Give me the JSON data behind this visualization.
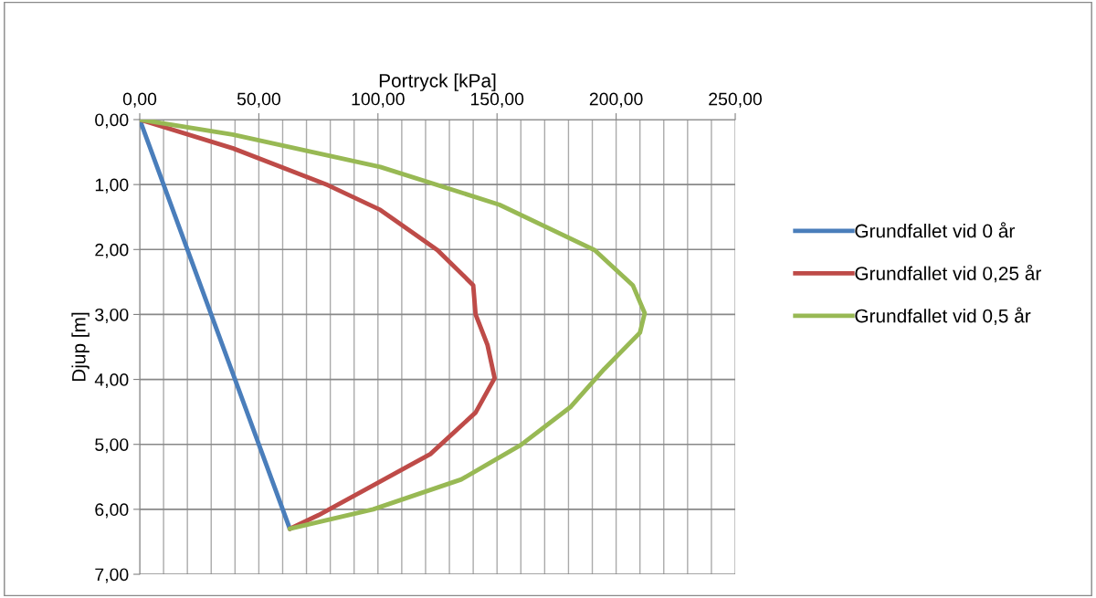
{
  "chart_data": {
    "type": "line",
    "xlabel": "Portryck [kPa]",
    "ylabel": "Djup [m]",
    "xlim": [
      0,
      250
    ],
    "xticks": [
      {
        "value": 0,
        "label": "0,00"
      },
      {
        "value": 50,
        "label": "50,00"
      },
      {
        "value": 100,
        "label": "100,00"
      },
      {
        "value": 150,
        "label": "150,00"
      },
      {
        "value": 200,
        "label": "200,00"
      },
      {
        "value": 250,
        "label": "250,00"
      }
    ],
    "ylim": [
      7,
      0
    ],
    "yticks": [
      {
        "value": 0,
        "label": "0,00"
      },
      {
        "value": 1,
        "label": "1,00"
      },
      {
        "value": 2,
        "label": "2,00"
      },
      {
        "value": 3,
        "label": "3,00"
      },
      {
        "value": 4,
        "label": "4,00"
      },
      {
        "value": 5,
        "label": "5,00"
      },
      {
        "value": 6,
        "label": "6,00"
      },
      {
        "value": 7,
        "label": "7,00"
      }
    ],
    "grid": true,
    "legend": "right",
    "marker": "none",
    "line_style": "solid",
    "series": [
      {
        "name": "Grundfallet vid 0 år",
        "color": "#4a7ebb",
        "x": [
          0,
          63
        ],
        "values": [
          0,
          6.3
        ]
      },
      {
        "name": "Grundfallet vid 0,25 år",
        "color": "#be4b48",
        "x": [
          0,
          39,
          79,
          101,
          125,
          140,
          141,
          146,
          149,
          141,
          122,
          98,
          75,
          63
        ],
        "values": [
          0,
          0.44,
          1.01,
          1.39,
          2.01,
          2.55,
          3.0,
          3.47,
          3.98,
          4.51,
          5.15,
          5.63,
          6.09,
          6.3
        ]
      },
      {
        "name": "Grundfallet vid 0,5 år",
        "color": "#98b954",
        "x": [
          0,
          39,
          101,
          151,
          191,
          207,
          212,
          210,
          195,
          181,
          160,
          135,
          98,
          63
        ],
        "values": [
          0,
          0.23,
          0.73,
          1.31,
          2.01,
          2.55,
          2.98,
          3.28,
          3.84,
          4.42,
          5.01,
          5.54,
          6.0,
          6.3
        ]
      }
    ]
  }
}
